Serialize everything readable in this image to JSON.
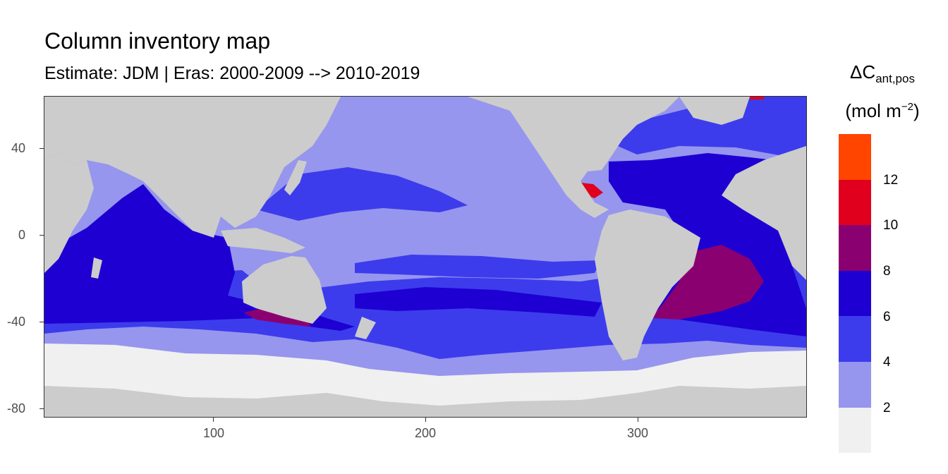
{
  "title": "Column inventory map",
  "subtitle": "Estimate: JDM  | Eras: 2000-2009 --> 2010-2019",
  "axes": {
    "x": {
      "ticks": [
        "100",
        "200",
        "300"
      ],
      "tick_values": [
        100,
        200,
        300
      ],
      "range": [
        20,
        380
      ]
    },
    "y": {
      "ticks": [
        "40",
        "0",
        "-40",
        "-80"
      ],
      "tick_values": [
        40,
        0,
        -40,
        -80
      ],
      "range": [
        -84,
        65
      ]
    }
  },
  "legend": {
    "title_main": "ΔC",
    "title_sub": "ant,pos",
    "unit_main": "(mol m",
    "unit_sup": "−2",
    "unit_close": ")",
    "labels": [
      "12",
      "10",
      "8",
      "6",
      "4",
      "2"
    ],
    "bins": [
      {
        "range": [
          12,
          14
        ],
        "color": "#ff4500"
      },
      {
        "range": [
          10,
          12
        ],
        "color": "#e0001e"
      },
      {
        "range": [
          8,
          10
        ],
        "color": "#8b0070"
      },
      {
        "range": [
          6,
          8
        ],
        "color": "#1e00d2"
      },
      {
        "range": [
          4,
          6
        ],
        "color": "#3c3cec"
      },
      {
        "range": [
          2,
          4
        ],
        "color": "#9696ee"
      },
      {
        "range": [
          0,
          2
        ],
        "color": "#f0f0f0"
      }
    ]
  },
  "colors": {
    "land": "#cccccc",
    "panel_border": "#333333"
  }
}
